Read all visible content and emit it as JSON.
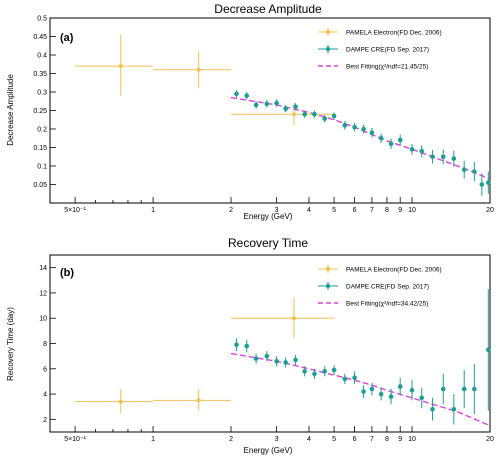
{
  "chart_data": [
    {
      "type": "scatter",
      "panel_label": "(a)",
      "title": "Decrease Amplitude",
      "xlabel": "Energy (GeV)",
      "ylabel": "Decrease Amplitude",
      "x_scale": "log",
      "xlim": [
        0.4,
        20
      ],
      "ylim": [
        0,
        0.5
      ],
      "x_tick_labels": [
        "5×10⁻¹",
        "1",
        "2",
        "3",
        "4",
        "5",
        "6",
        "7",
        "8",
        "9",
        "10",
        "20"
      ],
      "x_tick_values": [
        0.5,
        1,
        2,
        3,
        4,
        5,
        6,
        7,
        8,
        9,
        10,
        20
      ],
      "y_tick_labels": [
        "0.05",
        "0.1",
        "0.15",
        "0.2",
        "0.25",
        "0.3",
        "0.35",
        "0.4",
        "0.45",
        "0.5"
      ],
      "y_tick_values": [
        0.05,
        0.1,
        0.15,
        0.2,
        0.25,
        0.3,
        0.35,
        0.4,
        0.45,
        0.5
      ],
      "legend": [
        {
          "label": "PAMELA Electron(FD Dec. 2006)",
          "style": "marker-errorbar"
        },
        {
          "label": "DAMPE CRE(FD Sep. 2017)",
          "style": "marker-errorbar"
        },
        {
          "label": "Best Fitting(χ²/ndf=21.45/25)",
          "style": "dashed-line"
        }
      ],
      "legend_position": "top-right",
      "series": [
        {
          "name": "PAMELA Electron(FD Dec. 2006)",
          "color": "#f2c14e",
          "points": [
            {
              "x": 0.75,
              "y": 0.37,
              "xlo": 0.5,
              "xhi": 1.0,
              "ylo": 0.29,
              "yhi": 0.455
            },
            {
              "x": 1.5,
              "y": 0.36,
              "xlo": 1.0,
              "xhi": 2.0,
              "ylo": 0.31,
              "yhi": 0.41
            },
            {
              "x": 3.5,
              "y": 0.24,
              "xlo": 2.0,
              "xhi": 5.0,
              "ylo": 0.21,
              "yhi": 0.27
            }
          ]
        },
        {
          "name": "DAMPE CRE(FD Sep. 2017)",
          "color": "#1a9e96",
          "points": [
            {
              "x": 2.1,
              "y": 0.295,
              "err": 0.01
            },
            {
              "x": 2.3,
              "y": 0.29,
              "err": 0.01
            },
            {
              "x": 2.5,
              "y": 0.265,
              "err": 0.01
            },
            {
              "x": 2.75,
              "y": 0.268,
              "err": 0.01
            },
            {
              "x": 3.0,
              "y": 0.27,
              "err": 0.01
            },
            {
              "x": 3.25,
              "y": 0.255,
              "err": 0.01
            },
            {
              "x": 3.55,
              "y": 0.26,
              "err": 0.01
            },
            {
              "x": 3.85,
              "y": 0.24,
              "err": 0.01
            },
            {
              "x": 4.2,
              "y": 0.24,
              "err": 0.01
            },
            {
              "x": 4.6,
              "y": 0.228,
              "err": 0.01
            },
            {
              "x": 5.0,
              "y": 0.235,
              "err": 0.01
            },
            {
              "x": 5.5,
              "y": 0.21,
              "err": 0.012
            },
            {
              "x": 6.0,
              "y": 0.205,
              "err": 0.012
            },
            {
              "x": 6.5,
              "y": 0.2,
              "err": 0.012
            },
            {
              "x": 7.0,
              "y": 0.19,
              "err": 0.013
            },
            {
              "x": 7.6,
              "y": 0.175,
              "err": 0.013
            },
            {
              "x": 8.3,
              "y": 0.16,
              "err": 0.014
            },
            {
              "x": 9.0,
              "y": 0.17,
              "err": 0.015
            },
            {
              "x": 10.0,
              "y": 0.145,
              "err": 0.015
            },
            {
              "x": 10.9,
              "y": 0.14,
              "err": 0.016
            },
            {
              "x": 12.0,
              "y": 0.125,
              "err": 0.018
            },
            {
              "x": 13.2,
              "y": 0.125,
              "err": 0.02
            },
            {
              "x": 14.5,
              "y": 0.12,
              "err": 0.022
            },
            {
              "x": 15.9,
              "y": 0.09,
              "err": 0.024
            },
            {
              "x": 17.4,
              "y": 0.085,
              "err": 0.026
            },
            {
              "x": 18.6,
              "y": 0.05,
              "err": 0.03
            },
            {
              "x": 19.7,
              "y": 0.055,
              "err": 0.03
            }
          ]
        },
        {
          "name": "Best Fitting(χ²/ndf=21.45/25)",
          "color": "#e040e0",
          "line": [
            [
              2.0,
              0.285
            ],
            [
              3.0,
              0.265
            ],
            [
              4.0,
              0.245
            ],
            [
              5.0,
              0.225
            ],
            [
              6.0,
              0.205
            ],
            [
              7.0,
              0.185
            ],
            [
              8.0,
              0.168
            ],
            [
              10.0,
              0.145
            ],
            [
              12.0,
              0.125
            ],
            [
              15.0,
              0.1
            ],
            [
              20.0,
              0.065
            ]
          ]
        }
      ]
    },
    {
      "type": "scatter",
      "panel_label": "(b)",
      "title": "Recovery Time",
      "xlabel": "Energy (GeV)",
      "ylabel": "Recovery Time (day)",
      "x_scale": "log",
      "xlim": [
        0.4,
        20
      ],
      "ylim": [
        1,
        15
      ],
      "x_tick_labels": [
        "5×10⁻¹",
        "1",
        "2",
        "3",
        "4",
        "5",
        "6",
        "7",
        "8",
        "9",
        "10",
        "20"
      ],
      "x_tick_values": [
        0.5,
        1,
        2,
        3,
        4,
        5,
        6,
        7,
        8,
        9,
        10,
        20
      ],
      "y_tick_labels": [
        "2",
        "4",
        "6",
        "8",
        "10",
        "12",
        "14"
      ],
      "y_tick_values": [
        2,
        4,
        6,
        8,
        10,
        12,
        14
      ],
      "legend": [
        {
          "label": "PAMELA Electron(FD Dec. 2006)",
          "style": "marker-errorbar"
        },
        {
          "label": "DAMPE CRE(FD Sep. 2017)",
          "style": "marker-errorbar"
        },
        {
          "label": "Best Fitting(χ²/ndf=34.42/25)",
          "style": "dashed-line"
        }
      ],
      "legend_position": "top-right",
      "series": [
        {
          "name": "PAMELA Electron(FD Dec. 2006)",
          "color": "#f2c14e",
          "points": [
            {
              "x": 0.75,
              "y": 3.4,
              "xlo": 0.5,
              "xhi": 1.0,
              "ylo": 2.5,
              "yhi": 4.4
            },
            {
              "x": 1.5,
              "y": 3.5,
              "xlo": 1.0,
              "xhi": 2.0,
              "ylo": 2.7,
              "yhi": 4.4
            },
            {
              "x": 3.5,
              "y": 10.0,
              "xlo": 2.0,
              "xhi": 5.0,
              "ylo": 8.4,
              "yhi": 11.6
            }
          ]
        },
        {
          "name": "DAMPE CRE(FD Sep. 2017)",
          "color": "#1a9e96",
          "points": [
            {
              "x": 2.1,
              "y": 7.9,
              "err": 0.5
            },
            {
              "x": 2.3,
              "y": 7.8,
              "err": 0.5
            },
            {
              "x": 2.5,
              "y": 6.8,
              "err": 0.4
            },
            {
              "x": 2.75,
              "y": 7.0,
              "err": 0.4
            },
            {
              "x": 3.0,
              "y": 6.6,
              "err": 0.4
            },
            {
              "x": 3.25,
              "y": 6.5,
              "err": 0.4
            },
            {
              "x": 3.55,
              "y": 6.7,
              "err": 0.4
            },
            {
              "x": 3.85,
              "y": 5.8,
              "err": 0.4
            },
            {
              "x": 4.2,
              "y": 5.6,
              "err": 0.4
            },
            {
              "x": 4.6,
              "y": 5.8,
              "err": 0.4
            },
            {
              "x": 5.0,
              "y": 5.9,
              "err": 0.4
            },
            {
              "x": 5.5,
              "y": 5.2,
              "err": 0.4
            },
            {
              "x": 6.0,
              "y": 5.3,
              "err": 0.5
            },
            {
              "x": 6.5,
              "y": 4.2,
              "err": 0.5
            },
            {
              "x": 7.0,
              "y": 4.4,
              "err": 0.5
            },
            {
              "x": 7.6,
              "y": 4.0,
              "err": 0.5
            },
            {
              "x": 8.3,
              "y": 3.8,
              "err": 0.6
            },
            {
              "x": 9.0,
              "y": 4.6,
              "err": 0.7
            },
            {
              "x": 10.0,
              "y": 4.3,
              "err": 0.8
            },
            {
              "x": 10.9,
              "y": 3.7,
              "err": 0.8
            },
            {
              "x": 12.0,
              "y": 2.8,
              "err": 0.9
            },
            {
              "x": 13.2,
              "y": 4.4,
              "err": 1.2
            },
            {
              "x": 14.5,
              "y": 2.8,
              "err": 1.2
            },
            {
              "x": 15.9,
              "y": 4.4,
              "err": 1.5
            },
            {
              "x": 17.4,
              "y": 4.4,
              "err": 2.0
            },
            {
              "x": 19.7,
              "y": 7.5,
              "err": 4.8
            }
          ]
        },
        {
          "name": "Best Fitting(χ²/ndf=34.42/25)",
          "color": "#e040e0",
          "line": [
            [
              2.0,
              7.2
            ],
            [
              3.0,
              6.6
            ],
            [
              4.0,
              6.0
            ],
            [
              5.0,
              5.5
            ],
            [
              6.0,
              5.1
            ],
            [
              7.0,
              4.7
            ],
            [
              8.0,
              4.3
            ],
            [
              10.0,
              3.7
            ],
            [
              12.0,
              3.2
            ],
            [
              15.0,
              2.6
            ],
            [
              20.0,
              1.5
            ]
          ]
        }
      ]
    }
  ]
}
